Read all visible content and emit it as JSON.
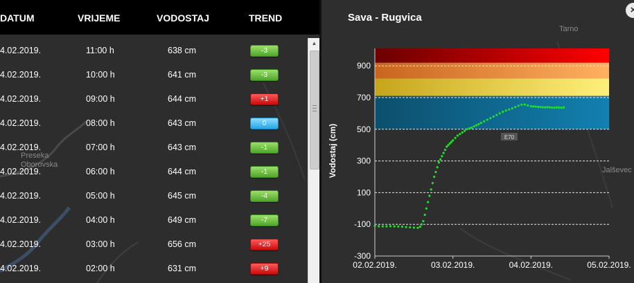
{
  "table": {
    "headers": {
      "datum": "DATUM",
      "vrijeme": "VRIJEME",
      "vodostaj": "VODOSTAJ",
      "trend": "TREND"
    },
    "rows": [
      {
        "datum": "4.02.2019.",
        "vrijeme": "11:00 h",
        "vodostaj": "638 cm",
        "trend": "-3",
        "dir": "down"
      },
      {
        "datum": "4.02.2019.",
        "vrijeme": "10:00 h",
        "vodostaj": "641 cm",
        "trend": "-3",
        "dir": "down"
      },
      {
        "datum": "4.02.2019.",
        "vrijeme": "09:00 h",
        "vodostaj": "644 cm",
        "trend": "+1",
        "dir": "up"
      },
      {
        "datum": "4.02.2019.",
        "vrijeme": "08:00 h",
        "vodostaj": "643 cm",
        "trend": "0",
        "dir": "flat"
      },
      {
        "datum": "4.02.2019.",
        "vrijeme": "07:00 h",
        "vodostaj": "643 cm",
        "trend": "-1",
        "dir": "down"
      },
      {
        "datum": "4.02.2019.",
        "vrijeme": "06:00 h",
        "vodostaj": "644 cm",
        "trend": "-1",
        "dir": "down"
      },
      {
        "datum": "4.02.2019.",
        "vrijeme": "05:00 h",
        "vodostaj": "645 cm",
        "trend": "-4",
        "dir": "down"
      },
      {
        "datum": "4.02.2019.",
        "vrijeme": "04:00 h",
        "vodostaj": "649 cm",
        "trend": "-7",
        "dir": "down"
      },
      {
        "datum": "4.02.2019.",
        "vrijeme": "03:00 h",
        "vodostaj": "656 cm",
        "trend": "+25",
        "dir": "up"
      },
      {
        "datum": "4.02.2019.",
        "vrijeme": "02:00 h",
        "vodostaj": "631 cm",
        "trend": "+9",
        "dir": "up"
      }
    ]
  },
  "map_labels": {
    "left": [
      "Preseka",
      "Oborovska"
    ],
    "right": [
      "Tarno",
      "Jalševec",
      "E70"
    ]
  },
  "colors": {
    "trend_down": "#4fa52a",
    "trend_up": "#c90b0b",
    "trend_flat": "#22a6e8",
    "series": "#22e02a",
    "zone_red": "#b30000",
    "zone_orange": "#f5a64a",
    "zone_yellow": "#f3e25a",
    "zone_blue": "#0e6f9a"
  },
  "chart_data": {
    "type": "scatter",
    "title": "Sava - Rugvica",
    "ylabel": "Vodostaj (cm)",
    "xlabel": "",
    "x_ticks": [
      "02.02.2019.",
      "03.02.2019.",
      "04.02.2019.",
      "05.02.2019."
    ],
    "y_ticks": [
      -300,
      -100,
      100,
      300,
      500,
      700,
      900
    ],
    "ylim": [
      -300,
      1010
    ],
    "xlim": [
      0,
      3
    ],
    "grid": "horizontal-dashed",
    "bands": [
      {
        "from": 920,
        "to": 1010,
        "color": "red"
      },
      {
        "from": 820,
        "to": 920,
        "color": "orange"
      },
      {
        "from": 710,
        "to": 820,
        "color": "yellow"
      },
      {
        "from": 500,
        "to": 710,
        "color": "blue"
      }
    ],
    "series": [
      {
        "x": [
          0.0,
          0.05,
          0.1,
          0.15,
          0.2,
          0.25,
          0.3,
          0.35,
          0.4,
          0.45,
          0.5,
          0.55,
          0.58,
          0.6,
          0.62,
          0.64,
          0.66,
          0.68,
          0.7,
          0.72,
          0.74,
          0.76,
          0.78,
          0.8,
          0.82,
          0.84,
          0.86,
          0.88,
          0.9,
          0.92,
          0.94,
          0.96,
          0.98,
          1.0,
          1.03,
          1.06,
          1.09,
          1.12,
          1.15,
          1.18,
          1.21,
          1.24,
          1.27,
          1.3,
          1.33,
          1.36,
          1.4,
          1.44,
          1.48,
          1.52,
          1.56,
          1.6,
          1.64,
          1.68,
          1.72,
          1.76,
          1.8,
          1.84,
          1.88,
          1.92,
          1.96,
          2.0,
          2.03,
          2.06,
          2.09,
          2.12,
          2.15,
          2.18,
          2.21,
          2.24,
          2.27,
          2.3,
          2.33,
          2.36,
          2.39,
          2.42
        ],
        "y": [
          -110,
          -112,
          -113,
          -113,
          -112,
          -113,
          -114,
          -115,
          -117,
          -119,
          -121,
          -122,
          -115,
          -100,
          -80,
          -40,
          0,
          40,
          80,
          120,
          160,
          200,
          230,
          260,
          290,
          310,
          330,
          350,
          370,
          390,
          400,
          410,
          420,
          430,
          445,
          460,
          470,
          480,
          490,
          500,
          505,
          510,
          518,
          525,
          532,
          540,
          550,
          560,
          570,
          580,
          590,
          600,
          610,
          618,
          625,
          632,
          640,
          648,
          655,
          656,
          650,
          645,
          644,
          643,
          641,
          640,
          639,
          638,
          640,
          638,
          637,
          636,
          638,
          637,
          636,
          638
        ]
      }
    ]
  }
}
